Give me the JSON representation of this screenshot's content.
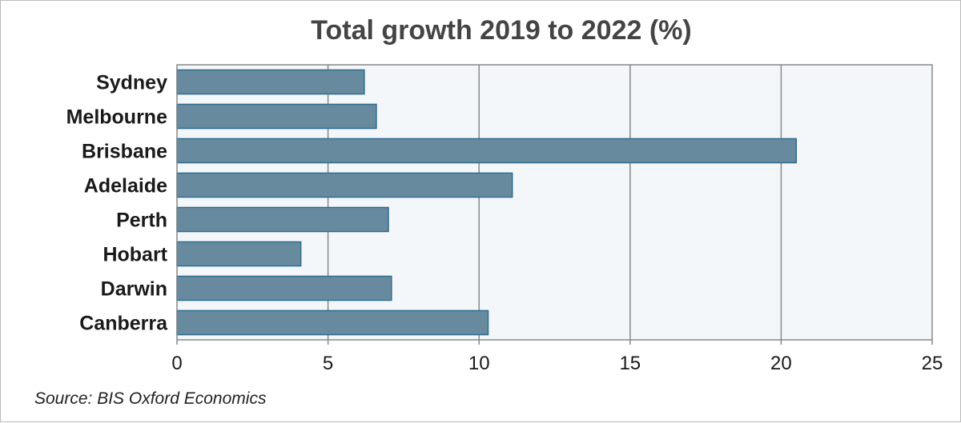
{
  "chart_data": {
    "type": "bar",
    "orientation": "horizontal",
    "title": "Total growth  2019 to 2022 (%)",
    "categories": [
      "Sydney",
      "Melbourne",
      "Brisbane",
      "Adelaide",
      "Perth",
      "Hobart",
      "Darwin",
      "Canberra"
    ],
    "values": [
      6.2,
      6.6,
      20.5,
      11.1,
      7.0,
      4.1,
      7.1,
      10.3
    ],
    "xlim": [
      0,
      25
    ],
    "xticks": [
      "0",
      "5",
      "10",
      "15",
      "20",
      "25"
    ],
    "xlabel": "",
    "ylabel": "",
    "grid": "vertical",
    "bar_color": "#688a9e",
    "bar_edge_color": "#2f6d8f",
    "plot_background": "#f3f7fa",
    "source": "Source: BIS Oxford Economics"
  }
}
